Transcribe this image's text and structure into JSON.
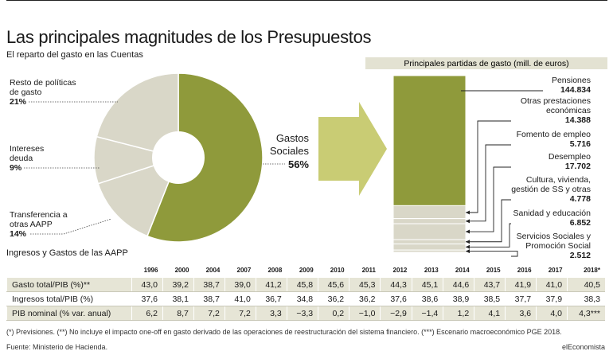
{
  "title": "Las principales magnitudes de los Presupuestos",
  "subtitle": "El reparto del gasto en las Cuentas",
  "colors": {
    "olive": "#8f9a3b",
    "beige": "#d9d7c8",
    "arrow": "#c9cc74",
    "white": "#ffffff"
  },
  "chart_data": [
    {
      "type": "pie",
      "subtitle": "El reparto del gasto en las Cuentas",
      "slices": [
        {
          "label": "Gastos Sociales",
          "value": 56,
          "display": "56%"
        },
        {
          "label": "Transferencia a otras AAPP",
          "value": 14,
          "display": "14%"
        },
        {
          "label": "Intereses deuda",
          "value": 9,
          "display": "9%"
        },
        {
          "label": "Resto de políticas de gasto",
          "value": 21,
          "display": "21%"
        }
      ],
      "callout_lines": {
        "gastos": [
          "Gastos",
          "Sociales"
        ],
        "transfer": [
          "Transferencia a",
          "otras AAPP"
        ],
        "intereses": [
          "Intereses",
          "deuda"
        ],
        "resto": [
          "Resto de políticas",
          "de gasto"
        ]
      }
    },
    {
      "type": "bar",
      "title": "Principales partidas de gasto (mill. de euros)",
      "stacked": true,
      "items": [
        {
          "lines": [
            "Pensiones"
          ],
          "value": 144834,
          "display": "144.834"
        },
        {
          "lines": [
            "Otras prestaciones",
            "económicas"
          ],
          "value": 14388,
          "display": "14.388"
        },
        {
          "lines": [
            "Fomento de empleo"
          ],
          "value": 5716,
          "display": "5.716"
        },
        {
          "lines": [
            "Desempleo"
          ],
          "value": 17702,
          "display": "17.702"
        },
        {
          "lines": [
            "Cultura, vivienda,",
            "gestión de SS y otras"
          ],
          "value": 4778,
          "display": "4.778"
        },
        {
          "lines": [
            "Sanidad y educación"
          ],
          "value": 6852,
          "display": "6.852"
        },
        {
          "lines": [
            "Servicios Sociales y",
            "Promoción Social"
          ],
          "value": 2512,
          "display": "2.512"
        }
      ]
    },
    {
      "type": "table",
      "title": "Ingresos y Gastos de las AAPP",
      "columns": [
        "1996",
        "2000",
        "2004",
        "2007",
        "2008",
        "2009",
        "2010",
        "2011",
        "2012",
        "2013",
        "2014",
        "2015",
        "2016",
        "2017",
        "2018*"
      ],
      "rows": [
        {
          "label": "Gasto total/PIB (%)**",
          "values": [
            "43,0",
            "39,2",
            "38,7",
            "39,0",
            "41,2",
            "45,8",
            "45,6",
            "45,3",
            "44,3",
            "45,1",
            "44,6",
            "43,7",
            "41,9",
            "41,0",
            "40,5"
          ]
        },
        {
          "label": "Ingresos total/PIB (%)",
          "values": [
            "37,6",
            "38,1",
            "38,7",
            "41,0",
            "36,7",
            "34,8",
            "36,2",
            "36,2",
            "37,6",
            "38,6",
            "38,9",
            "38,5",
            "37,7",
            "37,9",
            "38,3"
          ]
        },
        {
          "label": "PIB nominal (% var. anual)",
          "values": [
            "6,2",
            "8,7",
            "7,2",
            "7,2",
            "3,3",
            "−3,3",
            "0,2",
            "−1,0",
            "−2,9",
            "−1,4",
            "1,2",
            "4,1",
            "3,6",
            "4,0",
            "4,3***"
          ]
        }
      ]
    }
  ],
  "footnote": "(*) Previsiones. (**) No incluye el impacto one-off en gasto derivado de las operaciones de reestructuración del sistema financiero. (***) Escenario macroeconómico PGE 2018.",
  "source": "Fuente: Ministerio de Hacienda.",
  "brand": "elEconomista"
}
